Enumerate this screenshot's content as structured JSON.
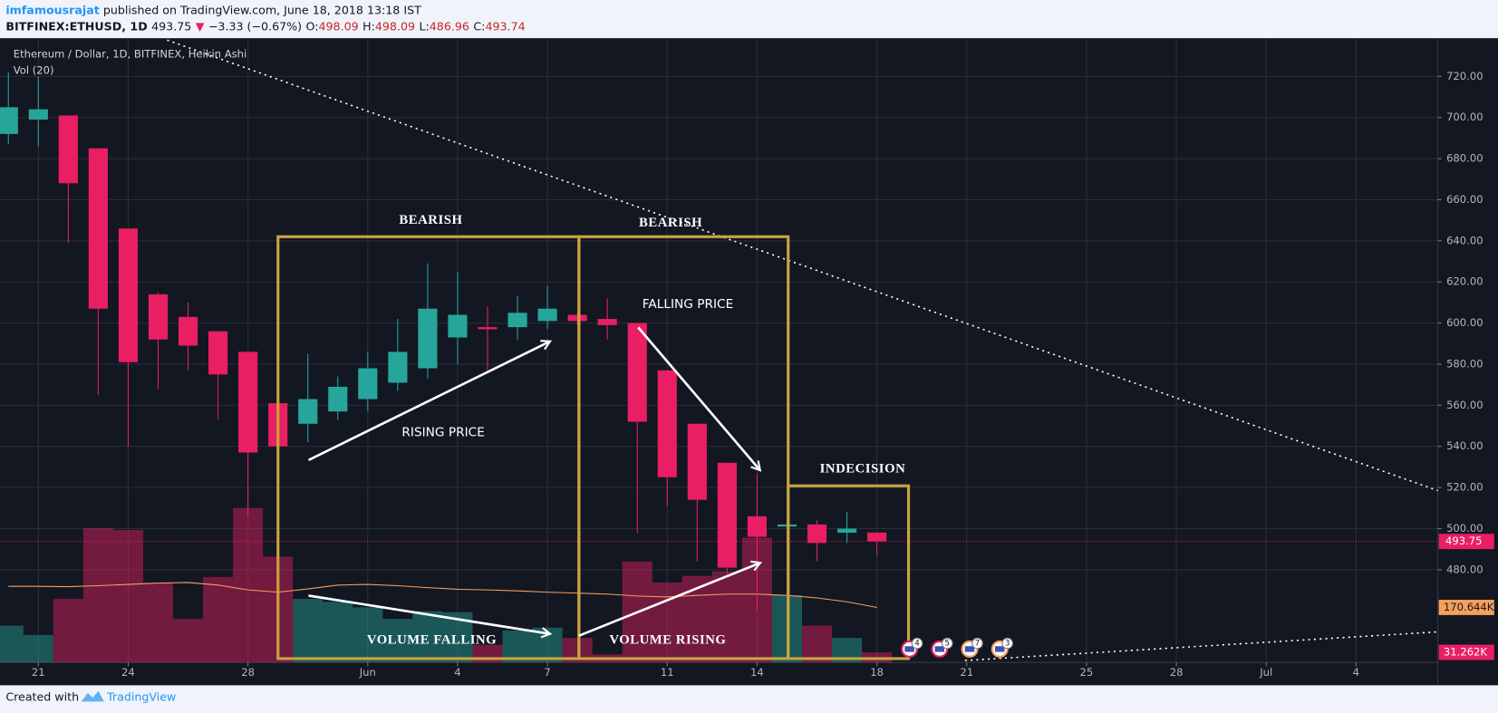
{
  "header": {
    "author": "imfamousrajat",
    "published": "published on TradingView.com, June 18, 2018 13:18 IST",
    "symbol": "BITFINEX:ETHUSD, 1D",
    "price": "493.75",
    "arrow": "▼",
    "change": "−3.33 (−0.67%)",
    "o_label": "O:",
    "o": "498.09",
    "h_label": "H:",
    "h": "498.09",
    "l_label": "L:",
    "l": "486.96",
    "c_label": "C:",
    "c": "493.74"
  },
  "footer": {
    "created": "Created with",
    "brand": "TradingView"
  },
  "chart_data": {
    "type": "candlestick",
    "title": "Ethereum / Dollar, 1D, BITFINEX, Heikin Ashi",
    "up_color": "#26a69a",
    "down_color": "#e91e63",
    "x": [
      0,
      1,
      2,
      3,
      4,
      5,
      6,
      7,
      8,
      9,
      10,
      11,
      12,
      13,
      14,
      15,
      16,
      17,
      18,
      19,
      20,
      21,
      22,
      23,
      24,
      25,
      26,
      27,
      28,
      29
    ],
    "open": [
      692,
      699,
      701,
      685,
      646,
      614,
      603,
      596,
      586,
      561,
      551,
      557,
      563,
      571,
      578,
      593,
      598,
      598,
      601,
      604,
      602,
      600,
      577,
      551,
      532,
      506,
      501,
      502,
      498,
      498.09
    ],
    "high": [
      722,
      720,
      701,
      685,
      646,
      615,
      610,
      596,
      586,
      561,
      585,
      574,
      586,
      602,
      629,
      625,
      608,
      613,
      618,
      605,
      612,
      600,
      577,
      551,
      532,
      527,
      503,
      504,
      508,
      498.09
    ],
    "low": [
      687,
      686,
      639,
      565,
      540,
      568,
      577,
      553,
      506,
      534,
      542,
      553,
      557,
      567,
      573,
      580,
      577,
      592,
      597,
      599,
      592,
      498,
      511,
      484,
      478,
      460,
      500,
      484,
      493,
      486.96
    ],
    "close": [
      705,
      704,
      668,
      607,
      581,
      592,
      589,
      575,
      537,
      540,
      563,
      569,
      578,
      586,
      607,
      604,
      597,
      605,
      607,
      601,
      599,
      552,
      525,
      514,
      481,
      496,
      502,
      493,
      500,
      493.74
    ],
    "volume": {
      "name": "Vol (20)",
      "axis": "y2",
      "values": [
        114,
        85,
        197,
        417,
        411,
        248,
        135,
        265,
        479,
        328,
        197,
        188,
        171,
        135,
        159,
        156,
        55,
        99,
        108,
        76,
        25,
        313,
        248,
        268,
        283,
        387,
        209,
        114,
        76,
        31.262
      ]
    },
    "volume_ma": {
      "axis": "y2",
      "color": "#f5a15b",
      "values": [
        236,
        236,
        235,
        238,
        242,
        246,
        248,
        240,
        225,
        218,
        228,
        240,
        242,
        238,
        232,
        227,
        225,
        222,
        218,
        215,
        212,
        206,
        203,
        208,
        212,
        212,
        208,
        200,
        188,
        170.644
      ]
    },
    "xlim": [
      -0.28,
      47.73
    ],
    "xticks": [
      {
        "value": 1,
        "label": "21"
      },
      {
        "value": 4,
        "label": "24"
      },
      {
        "value": 8,
        "label": "28"
      },
      {
        "value": 12,
        "label": "Jun"
      },
      {
        "value": 15,
        "label": "4"
      },
      {
        "value": 18,
        "label": "7"
      },
      {
        "value": 22,
        "label": "11"
      },
      {
        "value": 25,
        "label": "14"
      },
      {
        "value": 29,
        "label": "18"
      },
      {
        "value": 32,
        "label": "21"
      },
      {
        "value": 36,
        "label": "25"
      },
      {
        "value": 39,
        "label": "28"
      },
      {
        "value": 42,
        "label": "Jul"
      },
      {
        "value": 45,
        "label": "4"
      }
    ],
    "ylim": [
      434.9,
      738.6
    ],
    "yticks": [
      {
        "value": 480,
        "label": "480.00"
      },
      {
        "value": 500,
        "label": "500.00"
      },
      {
        "value": 520,
        "label": "520.00"
      },
      {
        "value": 540,
        "label": "540.00"
      },
      {
        "value": 560,
        "label": "560.00"
      },
      {
        "value": 580,
        "label": "580.00"
      },
      {
        "value": 600,
        "label": "600.00"
      },
      {
        "value": 620,
        "label": "620.00"
      },
      {
        "value": 640,
        "label": "640.00"
      },
      {
        "value": 660,
        "label": "660.00"
      },
      {
        "value": 680,
        "label": "680.00"
      },
      {
        "value": 700,
        "label": "700.00"
      },
      {
        "value": 720,
        "label": "720.00"
      }
    ],
    "y2lim": [
      0,
      1937
    ],
    "y2ticks": [
      {
        "value": 170.644,
        "label": "170.644K"
      },
      {
        "value": 31.262,
        "label": "31.262K"
      }
    ],
    "last_price": 493.75,
    "grid": true,
    "annotations": [
      "BEARISH",
      "BEARISH",
      "FALLING PRICE",
      "RISING PRICE",
      "INDECISION",
      "VOLUME FALLING",
      "VOLUME RISING"
    ],
    "events": [
      "4",
      "5",
      "7",
      "3"
    ]
  }
}
